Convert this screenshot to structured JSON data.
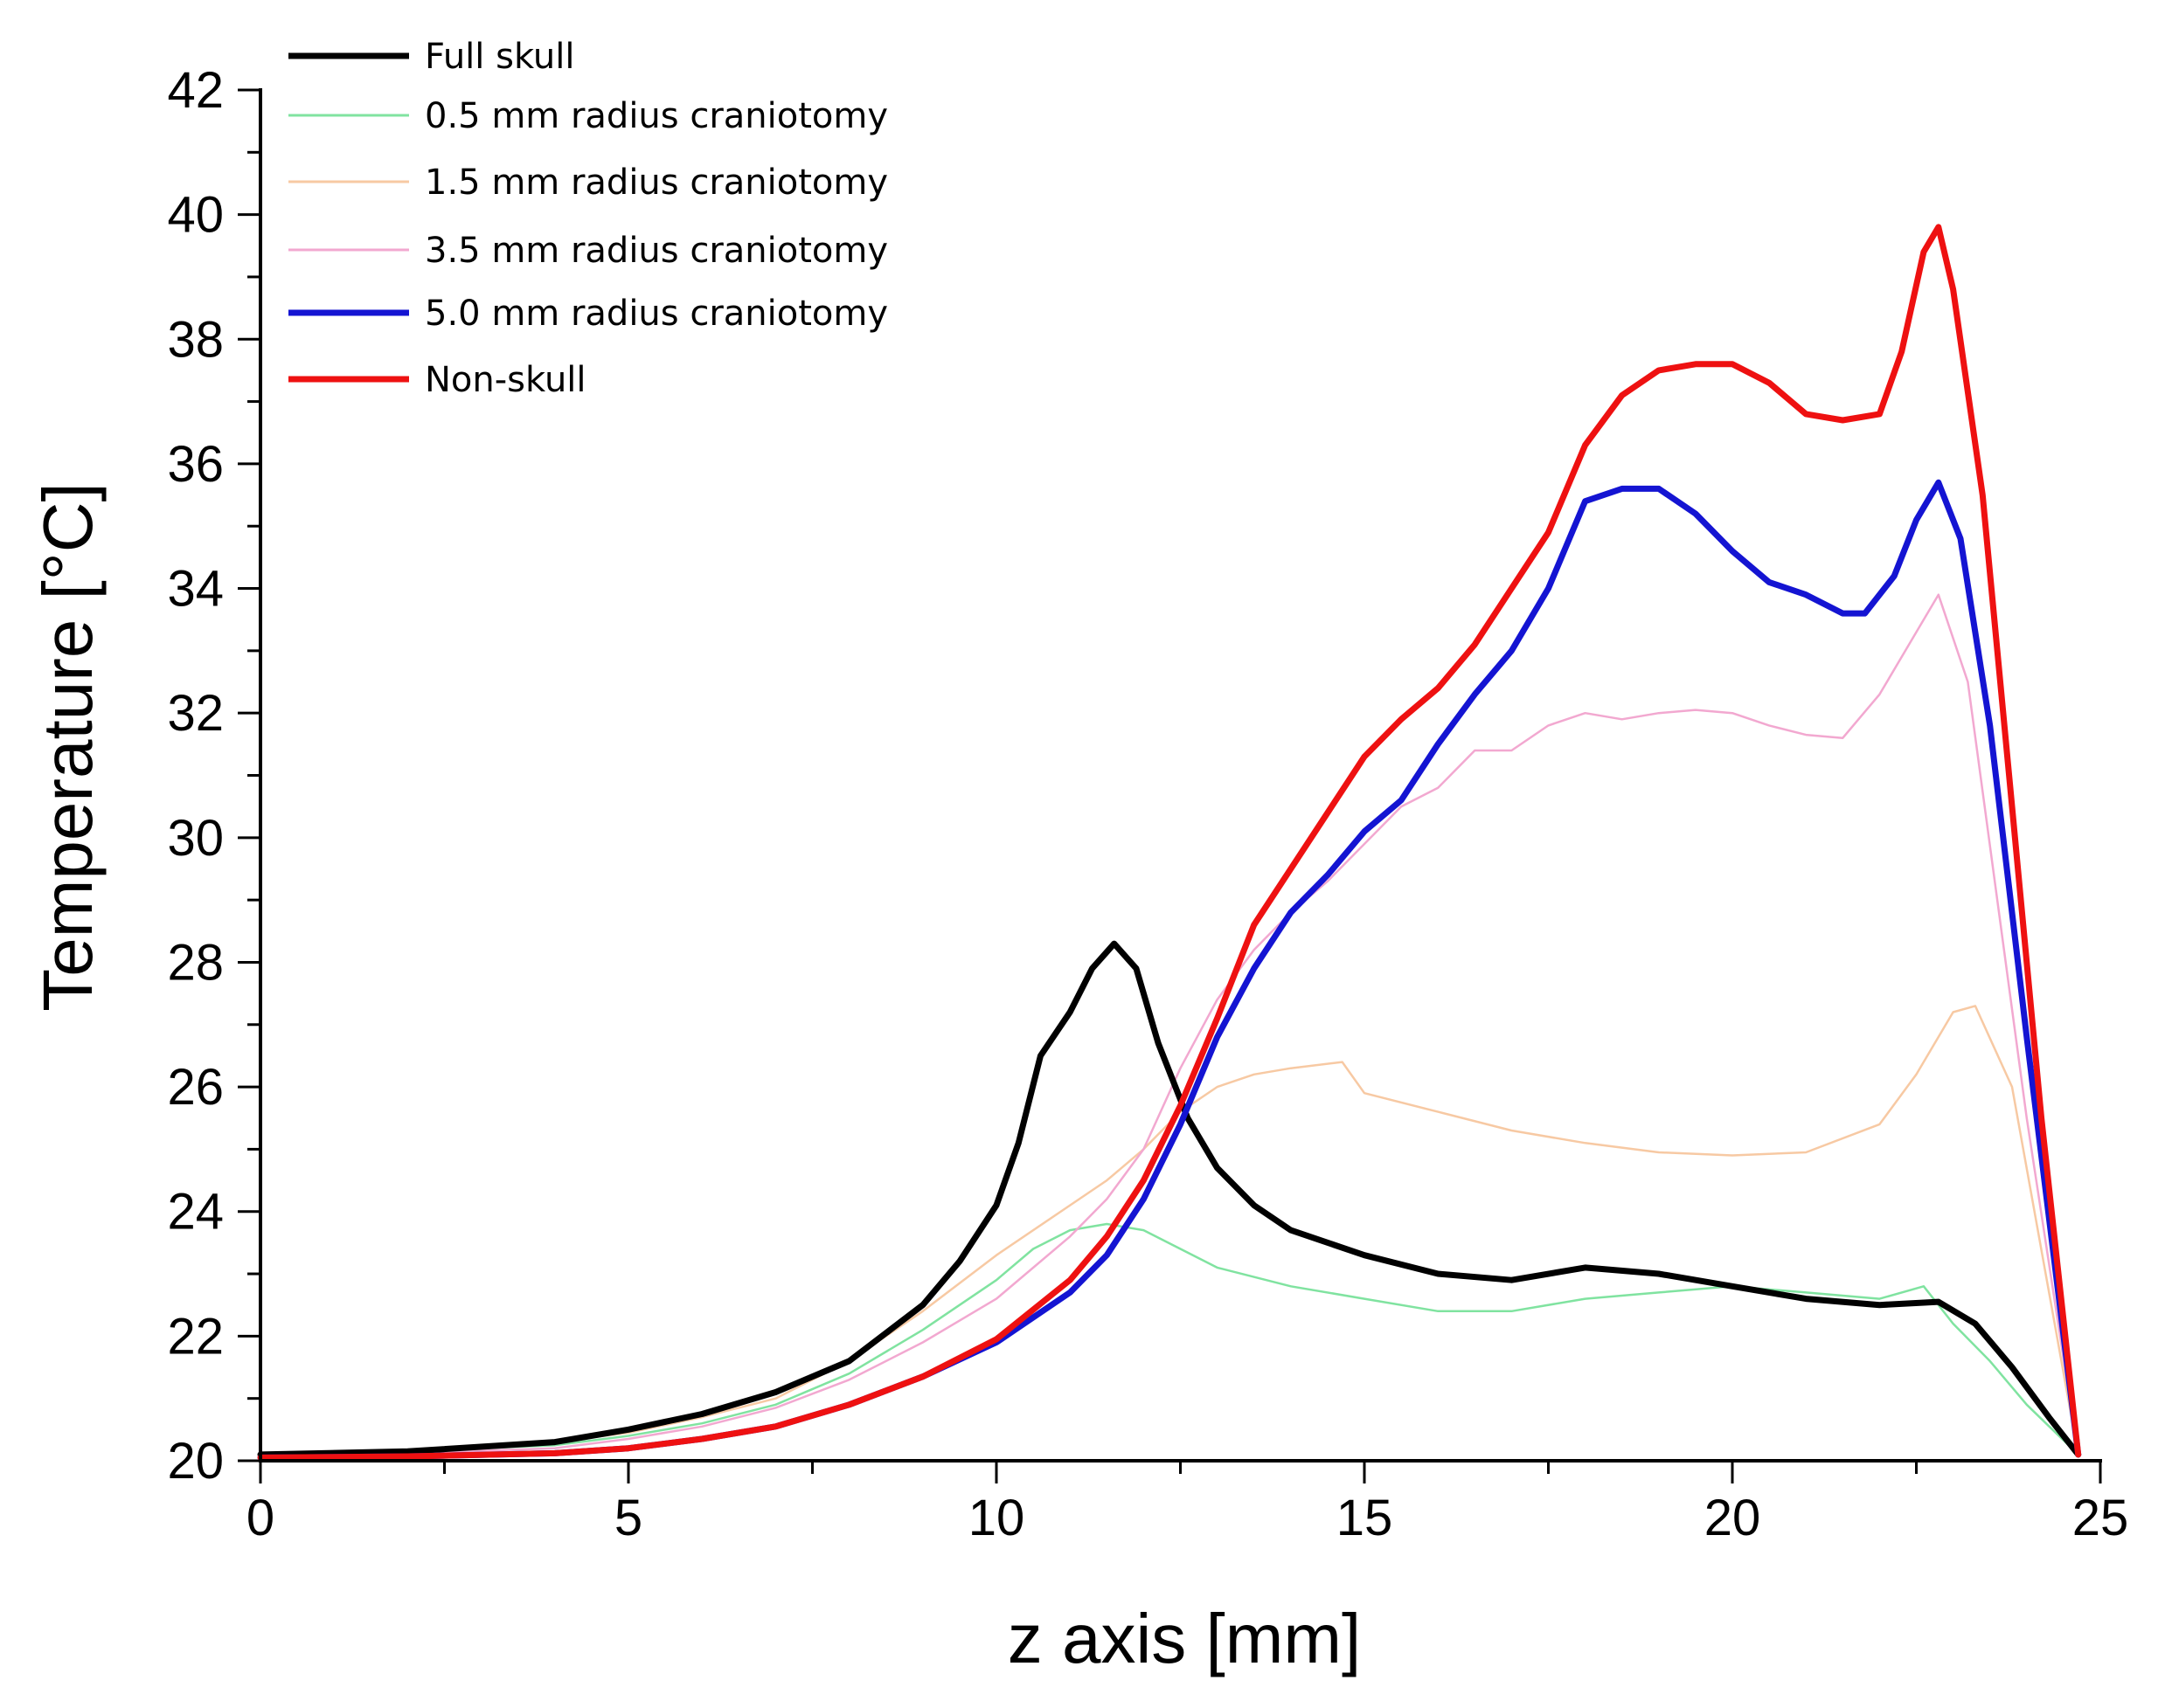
{
  "chart_data": {
    "type": "line",
    "title": "",
    "xlabel": "z axis [mm]",
    "ylabel": "Temperature  [°C]",
    "xlim": [
      0,
      25
    ],
    "ylim": [
      20,
      42
    ],
    "xticks": [
      0,
      5,
      10,
      15,
      20,
      25
    ],
    "xtick_labels": [
      "0",
      "5",
      "10",
      "15",
      "20",
      "25"
    ],
    "yticks": [
      20,
      22,
      24,
      26,
      28,
      30,
      32,
      34,
      36,
      38,
      40,
      42
    ],
    "ytick_labels": [
      "20",
      "22",
      "24",
      "26",
      "28",
      "30",
      "32",
      "34",
      "36",
      "38",
      "40",
      "42"
    ],
    "grid": false,
    "legend_position": "top-left",
    "series": [
      {
        "name": "Full skull",
        "color": "#000000",
        "emphasis": "bold",
        "x": [
          0,
          2,
          4,
          5,
          6,
          7,
          8,
          9,
          9.5,
          10,
          10.3,
          10.6,
          11,
          11.3,
          11.6,
          11.9,
          12.2,
          12.6,
          13,
          13.5,
          14,
          15,
          16,
          17,
          18,
          19,
          20,
          21,
          22,
          22.8,
          23.3,
          23.8,
          24.3,
          24.7
        ],
        "y": [
          20.1,
          20.15,
          20.3,
          20.5,
          20.75,
          21.1,
          21.6,
          22.5,
          23.2,
          24.1,
          25.1,
          26.5,
          27.2,
          27.9,
          28.3,
          27.9,
          26.7,
          25.5,
          24.7,
          24.1,
          23.7,
          23.3,
          23.0,
          22.9,
          23.1,
          23.0,
          22.8,
          22.6,
          22.5,
          22.55,
          22.2,
          21.5,
          20.7,
          20.1
        ]
      },
      {
        "name": "0.5 mm radius craniotomy",
        "color": "#80e3a0",
        "emphasis": "thin",
        "x": [
          0,
          2,
          4,
          5,
          6,
          7,
          8,
          9,
          10,
          10.5,
          11,
          11.5,
          12,
          12.5,
          13,
          14,
          15,
          16,
          17,
          18,
          19,
          20,
          21,
          22,
          22.6,
          23,
          23.5,
          24,
          24.7
        ],
        "y": [
          20.1,
          20.15,
          20.25,
          20.4,
          20.6,
          20.9,
          21.4,
          22.1,
          22.9,
          23.4,
          23.7,
          23.8,
          23.7,
          23.4,
          23.1,
          22.8,
          22.6,
          22.4,
          22.4,
          22.6,
          22.7,
          22.8,
          22.7,
          22.6,
          22.8,
          22.2,
          21.6,
          20.9,
          20.1
        ]
      },
      {
        "name": "1.5 mm radius craniotomy",
        "color": "#f7c9a3",
        "emphasis": "thin",
        "x": [
          0,
          2,
          4,
          5,
          6,
          7,
          8,
          9,
          10,
          11,
          11.5,
          12,
          12.5,
          13,
          13.5,
          14,
          14.7,
          15,
          16,
          17,
          18,
          19,
          20,
          21,
          22,
          22.5,
          23,
          23.3,
          23.8,
          24.7
        ],
        "y": [
          20.1,
          20.15,
          20.3,
          20.45,
          20.7,
          21.0,
          21.6,
          22.4,
          23.3,
          24.1,
          24.5,
          25.0,
          25.6,
          26.0,
          26.2,
          26.3,
          26.4,
          25.9,
          25.6,
          25.3,
          25.1,
          24.95,
          24.9,
          24.95,
          25.4,
          26.2,
          27.2,
          27.3,
          26.0,
          20.1
        ]
      },
      {
        "name": "3.5 mm radius craniotomy",
        "color": "#f2a8d0",
        "emphasis": "thin",
        "x": [
          0,
          2,
          4,
          5,
          6,
          7,
          8,
          9,
          10,
          11,
          11.5,
          12,
          12.5,
          13,
          13.5,
          14,
          14.5,
          15,
          15.5,
          16,
          16.5,
          17,
          17.5,
          18,
          18.5,
          19,
          19.5,
          20,
          20.5,
          21,
          21.5,
          22,
          22.5,
          22.8,
          23.2,
          23.6,
          24.0,
          24.7
        ],
        "y": [
          20.1,
          20.12,
          20.2,
          20.35,
          20.55,
          20.85,
          21.3,
          21.9,
          22.6,
          23.6,
          24.2,
          25.0,
          26.3,
          27.4,
          28.2,
          28.8,
          29.3,
          29.9,
          30.5,
          30.8,
          31.4,
          31.4,
          31.8,
          32.0,
          31.9,
          32.0,
          32.05,
          32.0,
          31.8,
          31.65,
          31.6,
          32.3,
          33.3,
          33.9,
          32.5,
          29.0,
          25.5,
          20.1
        ]
      },
      {
        "name": "5.0 mm radius craniotomy",
        "color": "#1414d2",
        "emphasis": "bold",
        "x": [
          0,
          2,
          4,
          5,
          6,
          7,
          8,
          9,
          10,
          11,
          11.5,
          12,
          12.5,
          13,
          13.5,
          14,
          14.5,
          15,
          15.5,
          16,
          16.5,
          17,
          17.5,
          18,
          18.5,
          19,
          19.5,
          20,
          20.5,
          21,
          21.5,
          21.8,
          22.2,
          22.5,
          22.8,
          23.1,
          23.5,
          24.0,
          24.7
        ],
        "y": [
          20.05,
          20.07,
          20.12,
          20.2,
          20.35,
          20.55,
          20.9,
          21.35,
          21.9,
          22.7,
          23.3,
          24.2,
          25.4,
          26.8,
          27.9,
          28.8,
          29.4,
          30.1,
          30.6,
          31.5,
          32.3,
          33.0,
          34.0,
          35.4,
          35.6,
          35.6,
          35.2,
          34.6,
          34.1,
          33.9,
          33.6,
          33.6,
          34.2,
          35.1,
          35.7,
          34.8,
          31.8,
          26.8,
          20.1
        ]
      },
      {
        "name": "Non-skull",
        "color": "#ee1111",
        "emphasis": "bold",
        "x": [
          0,
          2,
          4,
          5,
          6,
          7,
          8,
          9,
          10,
          11,
          11.5,
          12,
          12.5,
          13,
          13.5,
          14,
          14.5,
          15,
          15.5,
          16,
          16.5,
          17,
          17.5,
          18,
          18.5,
          19,
          19.5,
          20,
          20.5,
          21,
          21.5,
          22,
          22.3,
          22.6,
          22.8,
          23.0,
          23.4,
          23.8,
          24.2,
          24.7
        ],
        "y": [
          20.05,
          20.07,
          20.12,
          20.2,
          20.35,
          20.55,
          20.9,
          21.35,
          21.95,
          22.9,
          23.6,
          24.5,
          25.7,
          27.1,
          28.6,
          29.5,
          30.4,
          31.3,
          31.9,
          32.4,
          33.1,
          34.0,
          34.9,
          36.3,
          37.1,
          37.5,
          37.6,
          37.6,
          37.3,
          36.8,
          36.7,
          36.8,
          37.8,
          39.4,
          39.8,
          38.8,
          35.5,
          30.5,
          25.5,
          20.1
        ]
      }
    ]
  }
}
